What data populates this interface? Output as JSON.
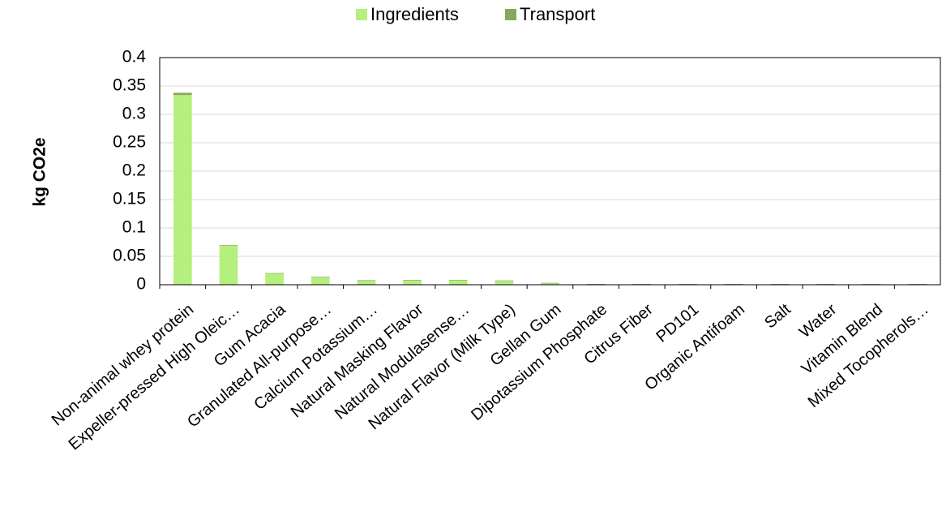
{
  "chart_data": {
    "type": "bar",
    "stacked": true,
    "title": "",
    "xlabel": "",
    "ylabel": "kg CO2e",
    "ylim": [
      0,
      0.4
    ],
    "yticks": [
      "0",
      "0.05",
      "0.1",
      "0.15",
      "0.2",
      "0.25",
      "0.3",
      "0.35",
      "0.4"
    ],
    "grid": true,
    "legend_position": "top-center",
    "categories": [
      "Non-animal whey protein",
      "Expeller-pressed High Oleic…",
      "Gum Acacia",
      "Granulated All-purpose…",
      "Calcium Potassium…",
      "Natural Masking Flavor",
      "Natural Modulasense…",
      "Natural Flavor (Milk Type)",
      "Gellan Gum",
      "Dipotassium Phosphate",
      "Citrus Fiber",
      "PD101",
      "Organic Antifoam",
      "Salt",
      "Water",
      "Vitamin Blend",
      "Mixed Tocopherols…"
    ],
    "series": [
      {
        "name": "Ingredients",
        "color": "#b5ef7e",
        "values": [
          0.334,
          0.069,
          0.02,
          0.013,
          0.007,
          0.008,
          0.008,
          0.007,
          0.003,
          0.001,
          0.001,
          0.001,
          0.001,
          0.001,
          0.001,
          0.001,
          0.001
        ]
      },
      {
        "name": "Transport",
        "color": "#85a85b",
        "values": [
          0.004,
          0.001,
          0.0005,
          0.001,
          0.001,
          0.0005,
          0.0005,
          0.0005,
          0.0003,
          0.0003,
          0.0003,
          0.0003,
          0.0003,
          0.0003,
          0.0003,
          0.0003,
          0.0003
        ]
      }
    ],
    "colors": {
      "gridline": "#d9d9d9",
      "axis": "#000000"
    }
  }
}
